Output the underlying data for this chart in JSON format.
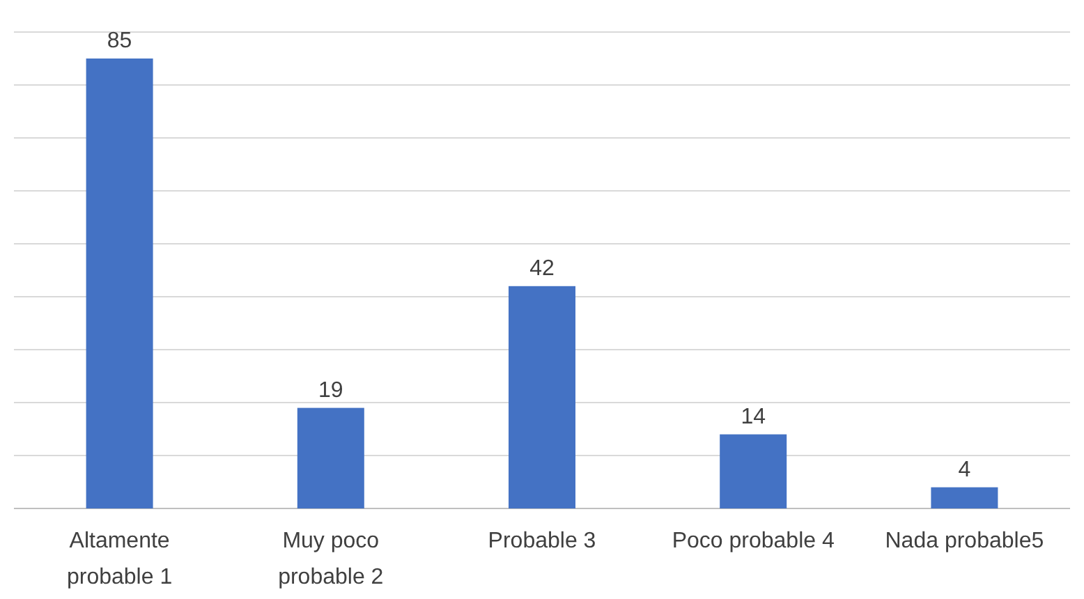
{
  "chart_data": {
    "type": "bar",
    "categories": [
      "Altamente probable 1",
      "Muy poco probable 2",
      "Probable 3",
      "Poco probable 4",
      "Nada probable5"
    ],
    "values": [
      85,
      19,
      42,
      14,
      4
    ],
    "color": "#4472c4",
    "ylim": [
      0,
      90
    ],
    "yticks": [
      {
        "value": 0,
        "label": null
      },
      {
        "value": 10,
        "label": null
      },
      {
        "value": 20,
        "label": null
      },
      {
        "value": 30,
        "label": null
      },
      {
        "value": 40,
        "label": null
      },
      {
        "value": 50,
        "label": null
      },
      {
        "value": 60,
        "label": null
      },
      {
        "value": 70,
        "label": null
      },
      {
        "value": 80,
        "label": null
      },
      {
        "value": 90,
        "label": null
      }
    ],
    "tick_labels": "x",
    "grid": "y",
    "data_labels": true
  }
}
